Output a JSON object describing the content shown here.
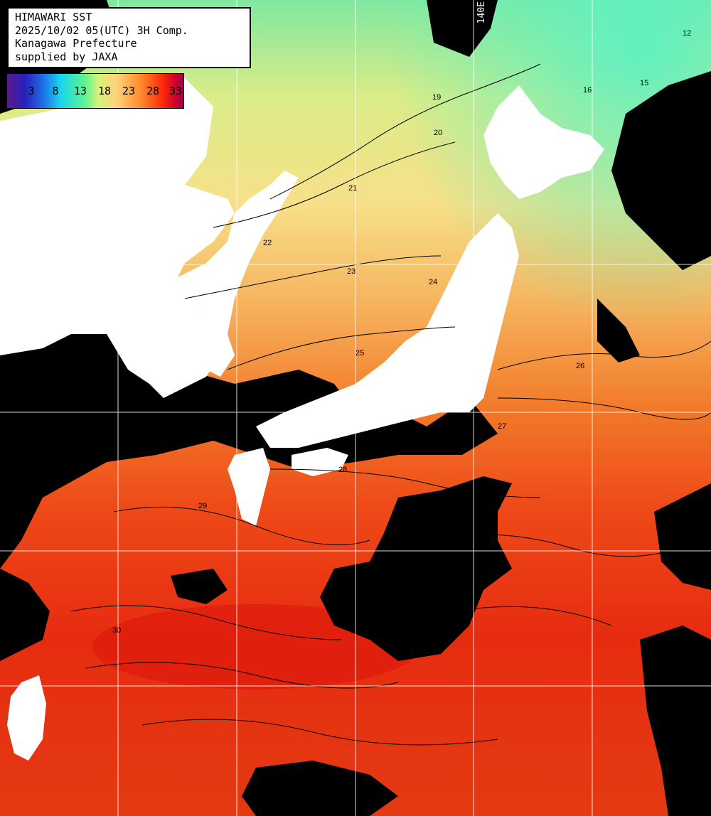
{
  "header": {
    "lines": [
      "HIMAWARI SST",
      "2025/10/02 05(UTC) 3H Comp.",
      "Kanagawa Prefecture",
      "supplied by JAXA"
    ]
  },
  "colorbar": {
    "labels": [
      "3",
      "8",
      "13",
      "18",
      "23",
      "28",
      "33"
    ]
  },
  "longitude_label": "140E",
  "contour_labels": [
    "12",
    "15",
    "16",
    "19",
    "20",
    "21",
    "22",
    "23",
    "24",
    "25",
    "26",
    "27",
    "28",
    "29",
    "30"
  ],
  "colors": {
    "land": "#ffffff",
    "cloud": "#000000",
    "grid": "#ffffff",
    "sst_cold": "#80f0b0",
    "sst_mid": "#f8e890",
    "sst_warm": "#f06018",
    "sst_hot": "#e01a10"
  }
}
